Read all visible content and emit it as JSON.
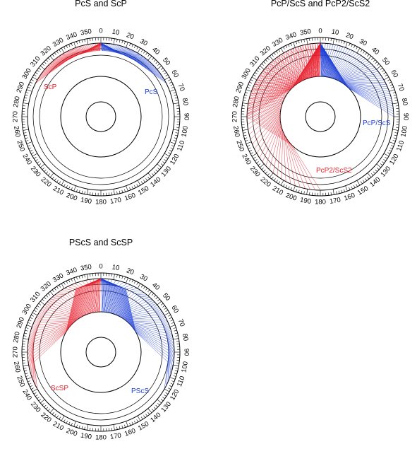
{
  "colors": {
    "red": "#e8202e",
    "blue": "#1f3fd6",
    "ink": "#000000"
  },
  "panels": [
    {
      "id": "pcs-scp",
      "title": "PcS and ScP",
      "ticks": [
        "0",
        "10",
        "20",
        "30",
        "40",
        "50",
        "60",
        "70",
        "80",
        "90",
        "100",
        "110",
        "120",
        "130",
        "140",
        "150",
        "160",
        "170",
        "180",
        "190",
        "200",
        "210",
        "220",
        "230",
        "240",
        "250",
        "260",
        "270",
        "280",
        "290",
        "300",
        "310",
        "320",
        "330",
        "340",
        "350"
      ],
      "phases": [
        {
          "label": "PcS",
          "color": "blue",
          "sweep_deg": [
            0,
            63
          ]
        },
        {
          "label": "ScP",
          "color": "red",
          "sweep_deg": [
            0,
            -63
          ]
        }
      ]
    },
    {
      "id": "pcp-scs",
      "title": "PcP/ScS and PcP2/ScS2",
      "ticks": [
        "0",
        "10",
        "20",
        "30",
        "40",
        "50",
        "60",
        "70",
        "80",
        "90",
        "100",
        "110",
        "120",
        "130",
        "140",
        "150",
        "160",
        "170",
        "180",
        "190",
        "200",
        "210",
        "220",
        "230",
        "240",
        "250",
        "260",
        "270",
        "280",
        "290",
        "300",
        "310",
        "320",
        "330",
        "340",
        "350"
      ],
      "phases": [
        {
          "label": "PcP/ScS",
          "color": "blue",
          "sweep_deg": [
            0,
            90
          ]
        },
        {
          "label": "PcP2/ScS2",
          "color": "red",
          "sweep_deg": [
            0,
            -180
          ]
        }
      ]
    },
    {
      "id": "pscs-scsp",
      "title": "PScS and ScSP",
      "ticks": [
        "0",
        "10",
        "20",
        "30",
        "40",
        "50",
        "60",
        "70",
        "80",
        "90",
        "100",
        "110",
        "120",
        "130",
        "140",
        "150",
        "160",
        "170",
        "180",
        "190",
        "200",
        "210",
        "220",
        "230",
        "240",
        "250",
        "260",
        "270",
        "280",
        "290",
        "300",
        "310",
        "320",
        "330",
        "340",
        "350"
      ],
      "phases": [
        {
          "label": "PScS",
          "color": "blue",
          "sweep_deg": [
            0,
            120
          ]
        },
        {
          "label": "ScSP",
          "color": "red",
          "sweep_deg": [
            0,
            -120
          ]
        }
      ]
    }
  ]
}
